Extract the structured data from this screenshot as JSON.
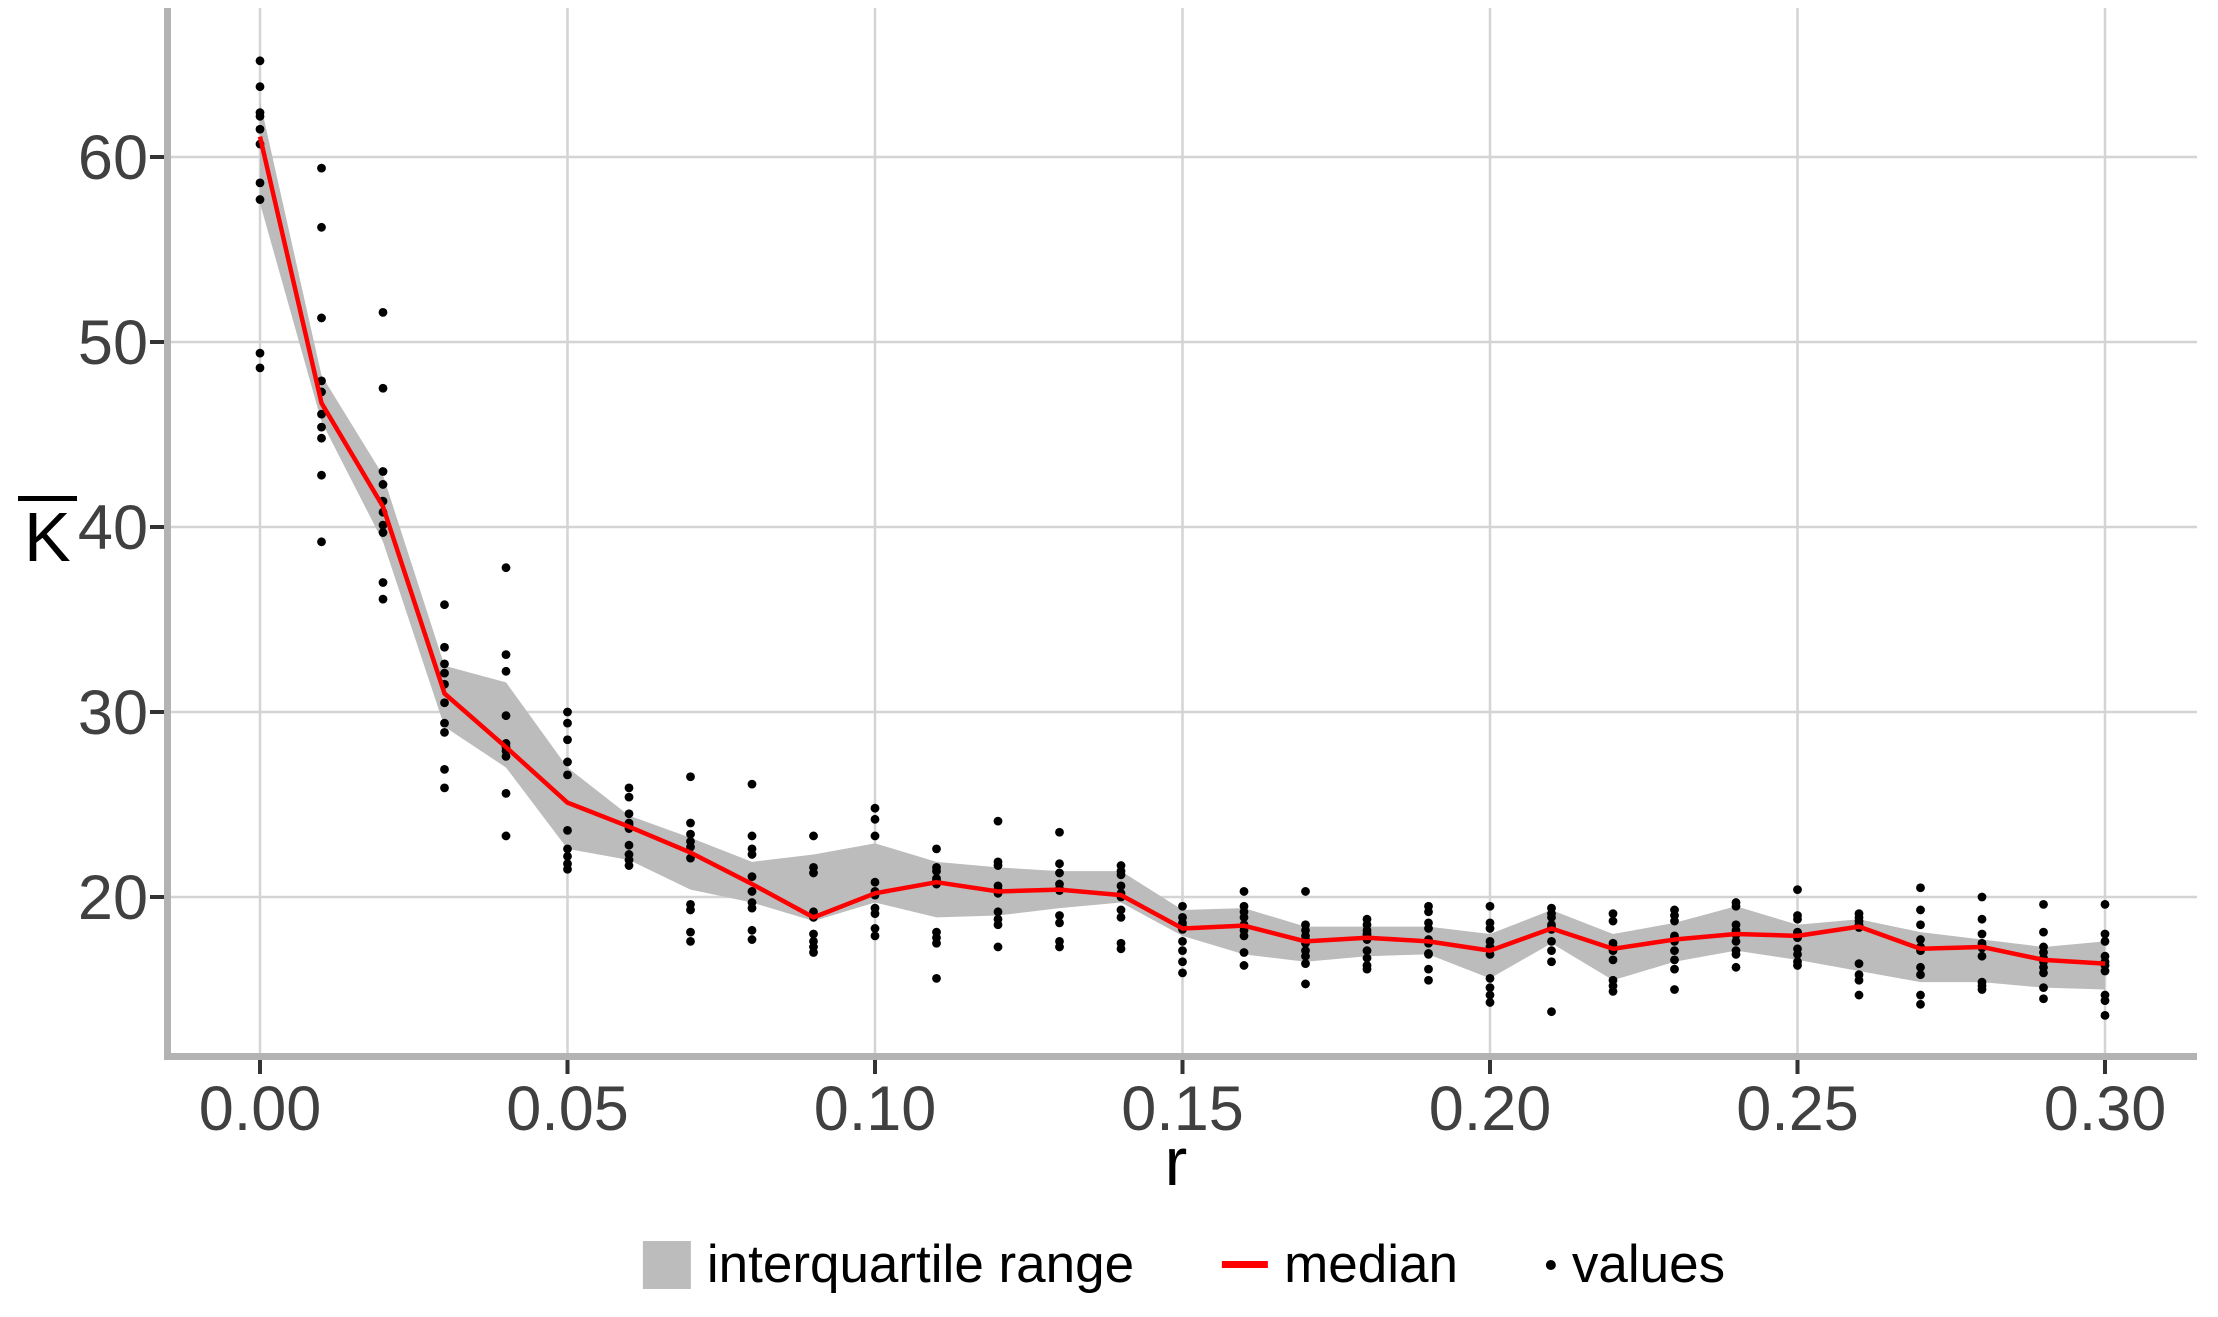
{
  "chart_data": {
    "type": "line",
    "title": "",
    "xlabel": "r",
    "ylabel": "K",
    "ylabel_overline": true,
    "grid": true,
    "legend_position": "bottom",
    "xlim": [
      -0.014,
      0.316
    ],
    "ylim": [
      11.5,
      68.0
    ],
    "xticks": [
      0.0,
      0.05,
      0.1,
      0.15,
      0.2,
      0.25,
      0.3
    ],
    "xtick_labels": [
      "0.00",
      "0.05",
      "0.10",
      "0.15",
      "0.20",
      "0.25",
      "0.30"
    ],
    "yticks": [
      20,
      30,
      40,
      50,
      60
    ],
    "ytick_labels": [
      "20",
      "30",
      "40",
      "50",
      "60"
    ],
    "x": [
      0.0,
      0.01,
      0.02,
      0.03,
      0.04,
      0.05,
      0.06,
      0.07,
      0.08,
      0.09,
      0.1,
      0.11,
      0.12,
      0.13,
      0.14,
      0.15,
      0.16,
      0.17,
      0.18,
      0.19,
      0.2,
      0.21,
      0.22,
      0.23,
      0.24,
      0.25,
      0.26,
      0.27,
      0.28,
      0.29,
      0.3
    ],
    "series": [
      {
        "name": "median",
        "type": "line",
        "values": [
          61.1,
          46.7,
          41.1,
          31.0,
          28.1,
          25.1,
          23.8,
          22.4,
          20.7,
          18.9,
          20.2,
          20.8,
          20.3,
          20.4,
          20.1,
          18.3,
          18.45,
          17.6,
          17.8,
          17.6,
          17.1,
          18.3,
          17.2,
          17.7,
          18.0,
          17.9,
          18.4,
          17.2,
          17.3,
          16.6,
          16.4
        ]
      },
      {
        "name": "interquartile range",
        "type": "band",
        "q1": [
          57.5,
          45.7,
          39.2,
          29.2,
          27.0,
          22.6,
          22.0,
          20.4,
          19.7,
          18.7,
          19.7,
          18.9,
          19.0,
          19.4,
          19.7,
          17.9,
          16.9,
          16.5,
          16.8,
          16.9,
          15.6,
          17.5,
          15.5,
          16.5,
          17.1,
          16.6,
          16.0,
          15.4,
          15.4,
          15.1,
          15.0
        ],
        "q3": [
          63.0,
          48.2,
          42.8,
          32.5,
          31.6,
          27.0,
          24.4,
          23.2,
          21.9,
          22.3,
          22.9,
          21.9,
          21.6,
          21.4,
          21.4,
          19.3,
          19.4,
          18.4,
          18.4,
          18.4,
          18.0,
          19.3,
          18.0,
          18.6,
          19.5,
          18.5,
          18.8,
          18.1,
          17.7,
          17.3,
          17.6
        ]
      },
      {
        "name": "values",
        "type": "scatter",
        "points": [
          [
            65.2,
            63.8,
            62.4,
            62.2,
            61.5,
            60.7,
            58.6,
            57.7,
            49.4,
            48.6
          ],
          [
            59.4,
            56.2,
            51.3,
            47.9,
            47.3,
            46.1,
            45.4,
            44.8,
            42.8,
            39.2
          ],
          [
            51.6,
            47.5,
            43.0,
            42.3,
            41.4,
            40.8,
            40.1,
            39.7,
            37.0,
            36.1
          ],
          [
            35.8,
            33.5,
            32.6,
            32.1,
            31.5,
            30.5,
            29.4,
            28.9,
            26.9,
            25.9
          ],
          [
            37.8,
            33.1,
            32.2,
            29.8,
            28.3,
            28.1,
            27.9,
            27.6,
            25.6,
            23.3
          ],
          [
            30.0,
            29.4,
            28.5,
            27.3,
            26.6,
            23.6,
            22.6,
            22.2,
            21.8,
            21.5
          ],
          [
            25.9,
            25.4,
            24.5,
            24.0,
            23.9,
            23.7,
            22.8,
            22.3,
            22.0,
            21.7
          ],
          [
            26.5,
            24.0,
            23.4,
            23.0,
            22.7,
            22.1,
            19.6,
            19.3,
            18.1,
            17.6
          ],
          [
            26.1,
            23.3,
            22.6,
            22.3,
            21.1,
            20.3,
            19.7,
            19.4,
            18.2,
            17.7
          ],
          [
            23.3,
            21.6,
            21.3,
            19.2,
            19.0,
            18.9,
            18.0,
            17.6,
            17.3,
            17.0
          ],
          [
            24.8,
            24.2,
            23.3,
            20.8,
            20.3,
            20.1,
            19.4,
            19.1,
            18.3,
            17.9
          ],
          [
            22.6,
            21.6,
            21.4,
            21.0,
            20.9,
            20.7,
            18.1,
            17.8,
            17.5,
            15.6
          ],
          [
            24.1,
            21.9,
            21.7,
            20.6,
            20.4,
            20.2,
            19.2,
            18.8,
            18.5,
            17.3
          ],
          [
            23.5,
            21.8,
            21.3,
            20.7,
            20.45,
            20.35,
            19.0,
            18.6,
            17.6,
            17.3
          ],
          [
            21.7,
            21.4,
            21.2,
            20.6,
            20.2,
            20.0,
            19.3,
            18.9,
            17.5,
            17.2
          ],
          [
            19.5,
            18.9,
            18.6,
            18.4,
            18.3,
            18.25,
            17.6,
            17.1,
            16.5,
            15.9
          ],
          [
            20.3,
            19.5,
            19.2,
            18.9,
            18.5,
            18.4,
            18.2,
            17.9,
            17.0,
            16.3
          ],
          [
            20.3,
            18.5,
            18.2,
            17.9,
            17.7,
            17.5,
            17.1,
            16.8,
            16.4,
            15.3
          ],
          [
            18.8,
            18.5,
            18.2,
            18.0,
            17.9,
            17.7,
            17.1,
            16.7,
            16.3,
            16.1
          ],
          [
            19.5,
            19.2,
            18.6,
            18.3,
            17.7,
            17.5,
            16.95,
            16.9,
            16.1,
            15.5
          ],
          [
            19.5,
            18.6,
            18.3,
            17.6,
            17.3,
            16.9,
            15.6,
            15.1,
            14.7,
            14.3
          ],
          [
            19.4,
            19.1,
            18.9,
            18.5,
            18.35,
            18.25,
            17.6,
            17.1,
            16.5,
            13.8
          ],
          [
            19.1,
            18.7,
            17.5,
            17.3,
            17.2,
            17.1,
            16.6,
            15.5,
            15.2,
            14.9
          ],
          [
            19.3,
            19.0,
            18.7,
            17.9,
            17.8,
            17.6,
            17.1,
            16.6,
            16.1,
            15.0
          ],
          [
            19.7,
            19.5,
            18.5,
            18.2,
            18.05,
            17.95,
            17.6,
            17.1,
            16.9,
            16.2
          ],
          [
            20.4,
            19.0,
            18.8,
            18.1,
            18.0,
            17.8,
            17.2,
            16.9,
            16.5,
            16.3
          ],
          [
            19.1,
            18.9,
            18.7,
            18.5,
            18.45,
            18.35,
            16.4,
            15.8,
            15.5,
            14.7
          ],
          [
            20.5,
            19.3,
            18.5,
            17.7,
            17.3,
            17.1,
            16.2,
            15.8,
            14.7,
            14.2
          ],
          [
            20.0,
            18.8,
            18.0,
            17.5,
            17.35,
            17.25,
            16.8,
            15.4,
            15.2,
            15.0
          ],
          [
            19.6,
            18.1,
            17.3,
            17.0,
            16.7,
            16.5,
            16.2,
            15.9,
            15.1,
            14.5
          ],
          [
            19.6,
            18.0,
            17.6,
            16.8,
            16.5,
            16.3,
            16.0,
            14.7,
            14.4,
            13.6
          ]
        ]
      }
    ]
  },
  "legend": {
    "items": [
      {
        "label": "interquartile range",
        "swatch": "band"
      },
      {
        "label": "median",
        "swatch": "line"
      },
      {
        "label": "values",
        "swatch": "point"
      }
    ]
  },
  "colors": {
    "median_line": "#fe0000",
    "iqr_band": "#bcbcbc",
    "gridline": "#d4d4d4",
    "axis_line": "#b3b3b3",
    "tick_mark": "#333333",
    "tick_label": "#404040",
    "text": "#000000",
    "point": "#000000",
    "background": "#ffffff"
  }
}
